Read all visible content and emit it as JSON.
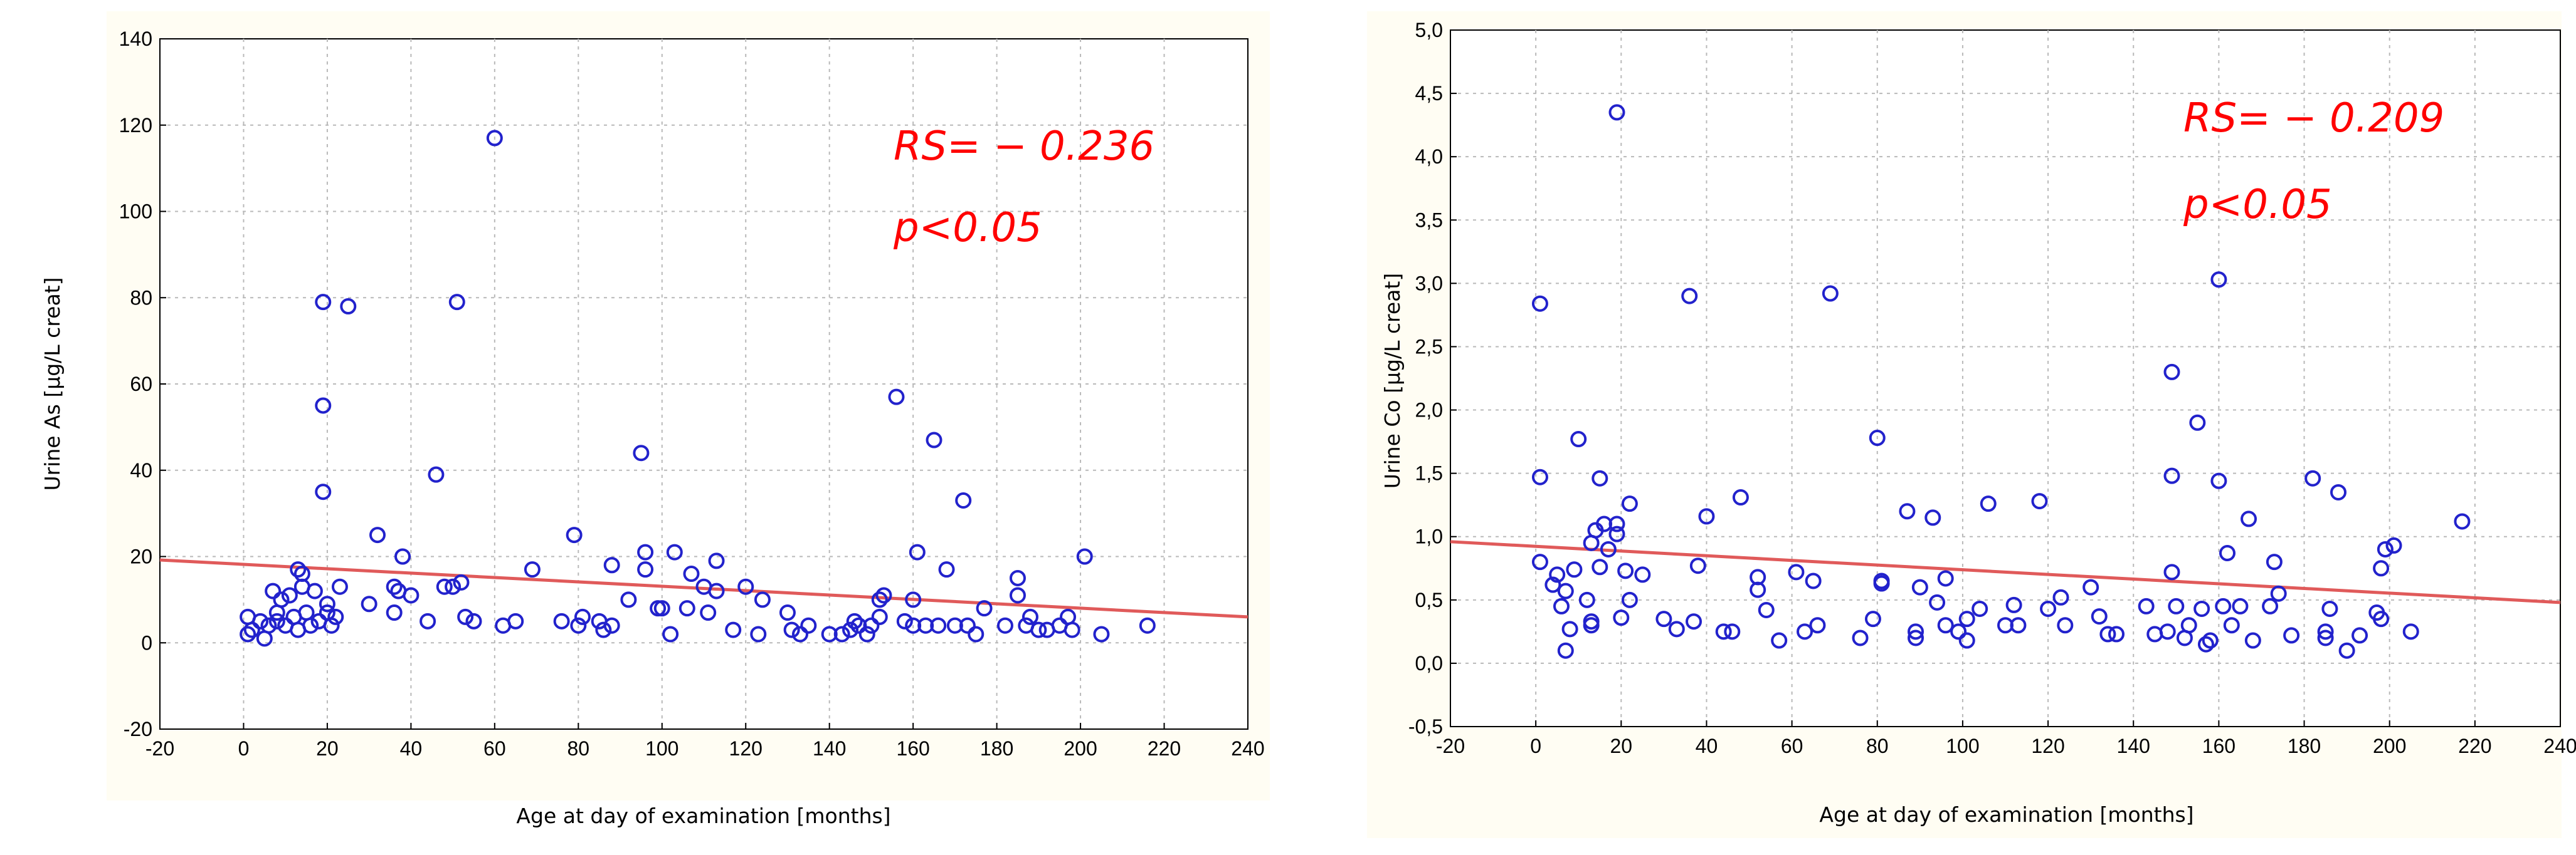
{
  "chart_data": [
    {
      "type": "scatter",
      "xlabel": "Age at day of examination [months]",
      "ylabel": "Urine As [µg/L creat]",
      "xlim": [
        -20,
        240
      ],
      "ylim": [
        -20,
        140
      ],
      "x_ticks": [
        -20,
        0,
        20,
        40,
        60,
        80,
        100,
        120,
        140,
        160,
        180,
        200,
        220,
        240
      ],
      "y_ticks": [
        -20,
        0,
        20,
        40,
        60,
        80,
        100,
        120,
        140
      ],
      "x_tick_labels": [
        "-20",
        "0",
        "20",
        "40",
        "60",
        "80",
        "100",
        "120",
        "140",
        "160",
        "180",
        "200",
        "220",
        "240"
      ],
      "y_tick_labels": [
        "-20",
        "0",
        "20",
        "40",
        "60",
        "80",
        "100",
        "120",
        "140"
      ],
      "grid": true,
      "annotations": [
        "RS= − 0.236",
        "p<0.05"
      ],
      "colors": {
        "points": "#2222cc",
        "fit_line": "#e05a5a",
        "annotation": "#ff0000"
      },
      "fit_line": {
        "x": [
          -20,
          240
        ],
        "y": [
          19.2,
          6.0
        ]
      },
      "points": [
        [
          1,
          6
        ],
        [
          1,
          2
        ],
        [
          2,
          3
        ],
        [
          4,
          5
        ],
        [
          5,
          1
        ],
        [
          6,
          4
        ],
        [
          7,
          12
        ],
        [
          8,
          7
        ],
        [
          8,
          5
        ],
        [
          9,
          10
        ],
        [
          10,
          4
        ],
        [
          11,
          11
        ],
        [
          12,
          6
        ],
        [
          13,
          3
        ],
        [
          13,
          17
        ],
        [
          14,
          16
        ],
        [
          14,
          13
        ],
        [
          15,
          7
        ],
        [
          16,
          4
        ],
        [
          17,
          12
        ],
        [
          18,
          5
        ],
        [
          19,
          79
        ],
        [
          19,
          55
        ],
        [
          19,
          35
        ],
        [
          20,
          9
        ],
        [
          20,
          7
        ],
        [
          21,
          4
        ],
        [
          22,
          6
        ],
        [
          23,
          13
        ],
        [
          25,
          78
        ],
        [
          30,
          9
        ],
        [
          32,
          25
        ],
        [
          36,
          7
        ],
        [
          36,
          13
        ],
        [
          37,
          12
        ],
        [
          38,
          20
        ],
        [
          40,
          11
        ],
        [
          44,
          5
        ],
        [
          46,
          39
        ],
        [
          48,
          13
        ],
        [
          50,
          13
        ],
        [
          51,
          79
        ],
        [
          52,
          14
        ],
        [
          53,
          6
        ],
        [
          55,
          5
        ],
        [
          60,
          117
        ],
        [
          62,
          4
        ],
        [
          65,
          5
        ],
        [
          69,
          17
        ],
        [
          76,
          5
        ],
        [
          79,
          25
        ],
        [
          80,
          4
        ],
        [
          81,
          6
        ],
        [
          85,
          5
        ],
        [
          86,
          3
        ],
        [
          88,
          18
        ],
        [
          88,
          4
        ],
        [
          92,
          10
        ],
        [
          95,
          44
        ],
        [
          96,
          17
        ],
        [
          96,
          21
        ],
        [
          99,
          8
        ],
        [
          100,
          8
        ],
        [
          102,
          2
        ],
        [
          103,
          21
        ],
        [
          106,
          8
        ],
        [
          107,
          16
        ],
        [
          110,
          13
        ],
        [
          111,
          7
        ],
        [
          113,
          12
        ],
        [
          113,
          19
        ],
        [
          117,
          3
        ],
        [
          120,
          13
        ],
        [
          123,
          2
        ],
        [
          124,
          10
        ],
        [
          130,
          7
        ],
        [
          131,
          3
        ],
        [
          133,
          2
        ],
        [
          135,
          4
        ],
        [
          140,
          2
        ],
        [
          143,
          2
        ],
        [
          145,
          3
        ],
        [
          146,
          5
        ],
        [
          147,
          4
        ],
        [
          149,
          2
        ],
        [
          150,
          4
        ],
        [
          152,
          10
        ],
        [
          152,
          6
        ],
        [
          153,
          11
        ],
        [
          156,
          57
        ],
        [
          158,
          5
        ],
        [
          160,
          4
        ],
        [
          160,
          10
        ],
        [
          161,
          21
        ],
        [
          163,
          4
        ],
        [
          165,
          47
        ],
        [
          166,
          4
        ],
        [
          168,
          17
        ],
        [
          170,
          4
        ],
        [
          172,
          33
        ],
        [
          173,
          4
        ],
        [
          175,
          2
        ],
        [
          177,
          8
        ],
        [
          182,
          4
        ],
        [
          185,
          15
        ],
        [
          185,
          11
        ],
        [
          187,
          4
        ],
        [
          188,
          6
        ],
        [
          190,
          3
        ],
        [
          192,
          3
        ],
        [
          195,
          4
        ],
        [
          197,
          6
        ],
        [
          198,
          3
        ],
        [
          201,
          20
        ],
        [
          205,
          2
        ],
        [
          216,
          4
        ]
      ]
    },
    {
      "type": "scatter",
      "xlabel": "Age at day of examination [months]",
      "ylabel": "Urine Co [µg/L creat]",
      "xlim": [
        -20,
        240
      ],
      "ylim": [
        -0.5,
        5.0
      ],
      "x_ticks": [
        -20,
        0,
        20,
        40,
        60,
        80,
        100,
        120,
        140,
        160,
        180,
        200,
        220,
        240
      ],
      "y_ticks": [
        -0.5,
        0.0,
        0.5,
        1.0,
        1.5,
        2.0,
        2.5,
        3.0,
        3.5,
        4.0,
        4.5,
        5.0
      ],
      "x_tick_labels": [
        "-20",
        "0",
        "20",
        "40",
        "60",
        "80",
        "100",
        "120",
        "140",
        "160",
        "180",
        "200",
        "220",
        "240"
      ],
      "y_tick_labels": [
        "-0,5",
        "0,0",
        "0,5",
        "1,0",
        "1,5",
        "2,0",
        "2,5",
        "3,0",
        "3,5",
        "4,0",
        "4,5",
        "5,0"
      ],
      "grid": true,
      "annotations": [
        "RS= − 0.209",
        "p<0.05"
      ],
      "colors": {
        "points": "#2222cc",
        "fit_line": "#e05a5a",
        "annotation": "#ff0000"
      },
      "fit_line": {
        "x": [
          -20,
          240
        ],
        "y": [
          0.96,
          0.48
        ]
      },
      "points": [
        [
          1,
          2.84
        ],
        [
          1,
          1.47
        ],
        [
          1,
          0.8
        ],
        [
          4,
          0.62
        ],
        [
          5,
          0.7
        ],
        [
          6,
          0.45
        ],
        [
          7,
          0.1
        ],
        [
          7,
          0.57
        ],
        [
          8,
          0.27
        ],
        [
          9,
          0.74
        ],
        [
          10,
          1.77
        ],
        [
          12,
          0.5
        ],
        [
          13,
          0.95
        ],
        [
          13,
          0.33
        ],
        [
          13,
          0.3
        ],
        [
          14,
          1.05
        ],
        [
          15,
          1.46
        ],
        [
          15,
          0.76
        ],
        [
          16,
          1.1
        ],
        [
          17,
          0.9
        ],
        [
          19,
          4.35
        ],
        [
          19,
          1.1
        ],
        [
          19,
          1.02
        ],
        [
          20,
          0.36
        ],
        [
          21,
          0.73
        ],
        [
          22,
          1.26
        ],
        [
          22,
          0.5
        ],
        [
          25,
          0.7
        ],
        [
          30,
          0.35
        ],
        [
          33,
          0.27
        ],
        [
          36,
          2.9
        ],
        [
          37,
          0.33
        ],
        [
          38,
          0.77
        ],
        [
          40,
          1.16
        ],
        [
          44,
          0.25
        ],
        [
          46,
          0.25
        ],
        [
          48,
          1.31
        ],
        [
          52,
          0.68
        ],
        [
          52,
          0.58
        ],
        [
          54,
          0.42
        ],
        [
          57,
          0.18
        ],
        [
          61,
          0.72
        ],
        [
          63,
          0.25
        ],
        [
          65,
          0.65
        ],
        [
          66,
          0.3
        ],
        [
          69,
          2.92
        ],
        [
          76,
          0.2
        ],
        [
          79,
          0.35
        ],
        [
          80,
          1.78
        ],
        [
          81,
          0.65
        ],
        [
          81,
          0.63
        ],
        [
          87,
          1.2
        ],
        [
          89,
          0.2
        ],
        [
          89,
          0.25
        ],
        [
          90,
          0.6
        ],
        [
          93,
          1.15
        ],
        [
          94,
          0.48
        ],
        [
          96,
          0.3
        ],
        [
          96,
          0.67
        ],
        [
          99,
          0.25
        ],
        [
          101,
          0.18
        ],
        [
          101,
          0.35
        ],
        [
          104,
          0.43
        ],
        [
          106,
          1.26
        ],
        [
          110,
          0.3
        ],
        [
          112,
          0.46
        ],
        [
          113,
          0.3
        ],
        [
          118,
          1.28
        ],
        [
          120,
          0.43
        ],
        [
          123,
          0.52
        ],
        [
          124,
          0.3
        ],
        [
          130,
          0.6
        ],
        [
          132,
          0.37
        ],
        [
          134,
          0.23
        ],
        [
          136,
          0.23
        ],
        [
          143,
          0.45
        ],
        [
          145,
          0.23
        ],
        [
          148,
          0.25
        ],
        [
          149,
          2.3
        ],
        [
          149,
          1.48
        ],
        [
          149,
          0.72
        ],
        [
          150,
          0.45
        ],
        [
          152,
          0.2
        ],
        [
          153,
          0.3
        ],
        [
          155,
          1.9
        ],
        [
          156,
          0.43
        ],
        [
          157,
          0.15
        ],
        [
          158,
          0.18
        ],
        [
          160,
          3.03
        ],
        [
          160,
          1.44
        ],
        [
          161,
          0.45
        ],
        [
          162,
          0.87
        ],
        [
          163,
          0.3
        ],
        [
          165,
          0.45
        ],
        [
          167,
          1.14
        ],
        [
          168,
          0.18
        ],
        [
          172,
          0.45
        ],
        [
          173,
          0.8
        ],
        [
          174,
          0.55
        ],
        [
          177,
          0.22
        ],
        [
          182,
          1.46
        ],
        [
          185,
          0.2
        ],
        [
          185,
          0.25
        ],
        [
          186,
          0.43
        ],
        [
          188,
          1.35
        ],
        [
          190,
          0.1
        ],
        [
          193,
          0.22
        ],
        [
          197,
          0.4
        ],
        [
          198,
          0.75
        ],
        [
          198,
          0.35
        ],
        [
          199,
          0.9
        ],
        [
          201,
          0.93
        ],
        [
          205,
          0.25
        ],
        [
          217,
          1.12
        ]
      ]
    }
  ]
}
